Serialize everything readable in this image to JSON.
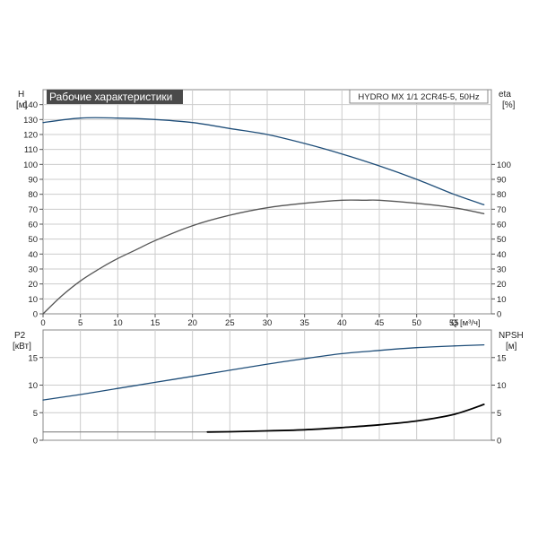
{
  "chart_data": [
    {
      "type": "line",
      "title": "Рабочие характеристики",
      "model_label": "HYDRO MX 1/1 2CR45-5, 50Hz",
      "xlabel": "Q [м³/ч]",
      "xlim": [
        0,
        60
      ],
      "x_ticks": [
        0,
        5,
        10,
        15,
        20,
        25,
        30,
        35,
        40,
        45,
        50,
        55
      ],
      "left_axis": {
        "label_top": "H",
        "label_unit": "[м]",
        "ylim": [
          0,
          150
        ],
        "ticks": [
          0,
          10,
          20,
          30,
          40,
          50,
          60,
          70,
          80,
          90,
          100,
          110,
          120,
          130,
          140
        ]
      },
      "right_axis": {
        "label_top": "eta",
        "label_unit": "[%]",
        "ylim": [
          0,
          150
        ],
        "ticks": [
          0,
          10,
          20,
          30,
          40,
          50,
          60,
          70,
          80,
          90,
          100
        ]
      },
      "grid": true,
      "series": [
        {
          "axis": "left",
          "color": "#1f4e79",
          "x": [
            0,
            5,
            10,
            15,
            20,
            25,
            30,
            35,
            40,
            45,
            50,
            55,
            59
          ],
          "values": [
            128,
            131,
            131,
            130,
            128,
            124,
            120,
            114,
            107,
            99,
            90,
            80,
            73
          ]
        },
        {
          "axis": "right",
          "color": "#555555",
          "x": [
            0,
            2.5,
            5,
            7.5,
            10,
            12.5,
            15,
            20,
            25,
            30,
            35,
            40,
            43,
            45,
            50,
            55,
            59
          ],
          "values": [
            0,
            12,
            22,
            30,
            37,
            43,
            49,
            59,
            66,
            71,
            74,
            76,
            76,
            76,
            74,
            71,
            67
          ]
        }
      ]
    },
    {
      "type": "line",
      "xlim": [
        0,
        60
      ],
      "left_axis": {
        "label_top": "P2",
        "label_unit": "[кВт]",
        "ylim": [
          0,
          20
        ],
        "ticks": [
          0,
          5,
          10,
          15
        ]
      },
      "right_axis": {
        "label_top": "NPSH",
        "label_unit": "[м]",
        "ylim": [
          0,
          20
        ],
        "ticks": [
          0,
          5,
          10,
          15
        ]
      },
      "grid": true,
      "series": [
        {
          "axis": "left",
          "color": "#1f4e79",
          "x": [
            0,
            5,
            10,
            15,
            20,
            25,
            30,
            35,
            40,
            45,
            50,
            55,
            59
          ],
          "values": [
            7.3,
            8.3,
            9.4,
            10.5,
            11.6,
            12.7,
            13.8,
            14.8,
            15.7,
            16.3,
            16.8,
            17.1,
            17.3
          ]
        },
        {
          "axis": "right",
          "color": "#777777",
          "width": 1,
          "x": [
            0,
            22
          ],
          "values": [
            1.5,
            1.5
          ]
        },
        {
          "axis": "right",
          "color": "#000000",
          "width": 1.8,
          "x": [
            22,
            25,
            30,
            35,
            40,
            45,
            50,
            55,
            59
          ],
          "values": [
            1.5,
            1.55,
            1.7,
            1.9,
            2.3,
            2.8,
            3.5,
            4.7,
            6.5
          ]
        }
      ]
    }
  ]
}
